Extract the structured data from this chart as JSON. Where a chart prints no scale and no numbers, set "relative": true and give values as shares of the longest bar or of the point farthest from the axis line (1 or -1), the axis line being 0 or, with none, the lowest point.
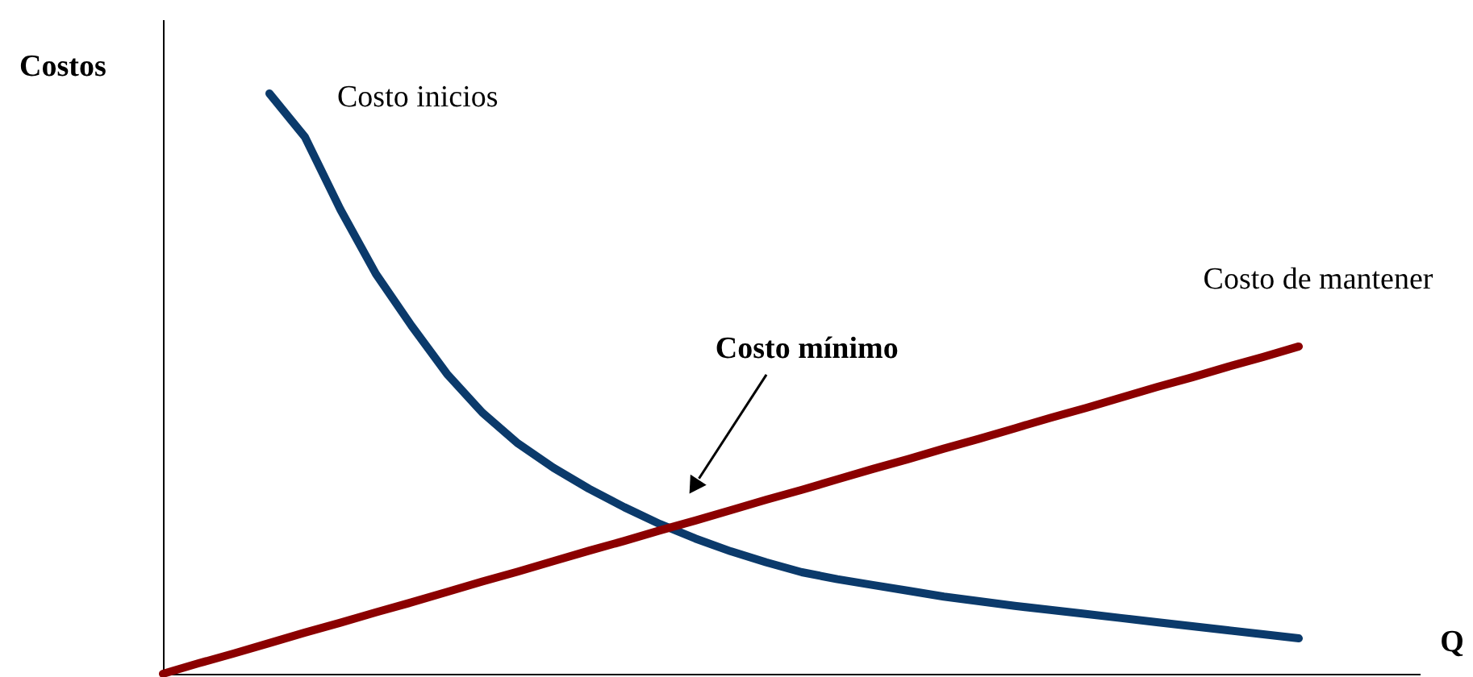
{
  "chart_data": {
    "type": "line",
    "relative": true,
    "ylabel": "Costos",
    "xlabel": "Q",
    "categories": [
      null,
      null,
      null,
      null,
      null,
      null,
      null,
      null,
      null,
      null,
      null,
      null,
      null,
      null,
      null,
      null,
      null,
      null,
      null,
      null,
      null,
      null,
      null,
      null,
      null,
      null,
      null,
      null,
      null,
      null,
      null,
      null,
      null
    ],
    "series": [
      {
        "name": "Costo inicios",
        "color": "#0b3a6b",
        "values": [
          null,
          null,
          null,
          1.0,
          0.925,
          0.8,
          0.689,
          0.6,
          0.517,
          0.45,
          0.397,
          0.355,
          0.319,
          0.287,
          0.258,
          0.233,
          0.211,
          0.192,
          0.175,
          0.163,
          0.153,
          0.143,
          0.133,
          0.125,
          0.117,
          0.11,
          0.103,
          0.096,
          0.089,
          0.082,
          0.075,
          0.068,
          0.061
        ]
      },
      {
        "name": "Costo de mantener",
        "color": "#8b0000",
        "values": [
          0,
          0.018,
          0.035,
          0.053,
          0.071,
          0.088,
          0.106,
          0.123,
          0.141,
          0.159,
          0.176,
          0.194,
          0.212,
          0.229,
          0.247,
          0.264,
          0.282,
          0.3,
          0.317,
          0.335,
          0.353,
          0.37,
          0.388,
          0.405,
          0.423,
          0.441,
          0.458,
          0.476,
          0.494,
          0.511,
          0.529,
          0.546,
          0.564
        ]
      }
    ],
    "annotations": [
      "Costo mínimo"
    ],
    "marker": "none",
    "line_style": "solid"
  }
}
